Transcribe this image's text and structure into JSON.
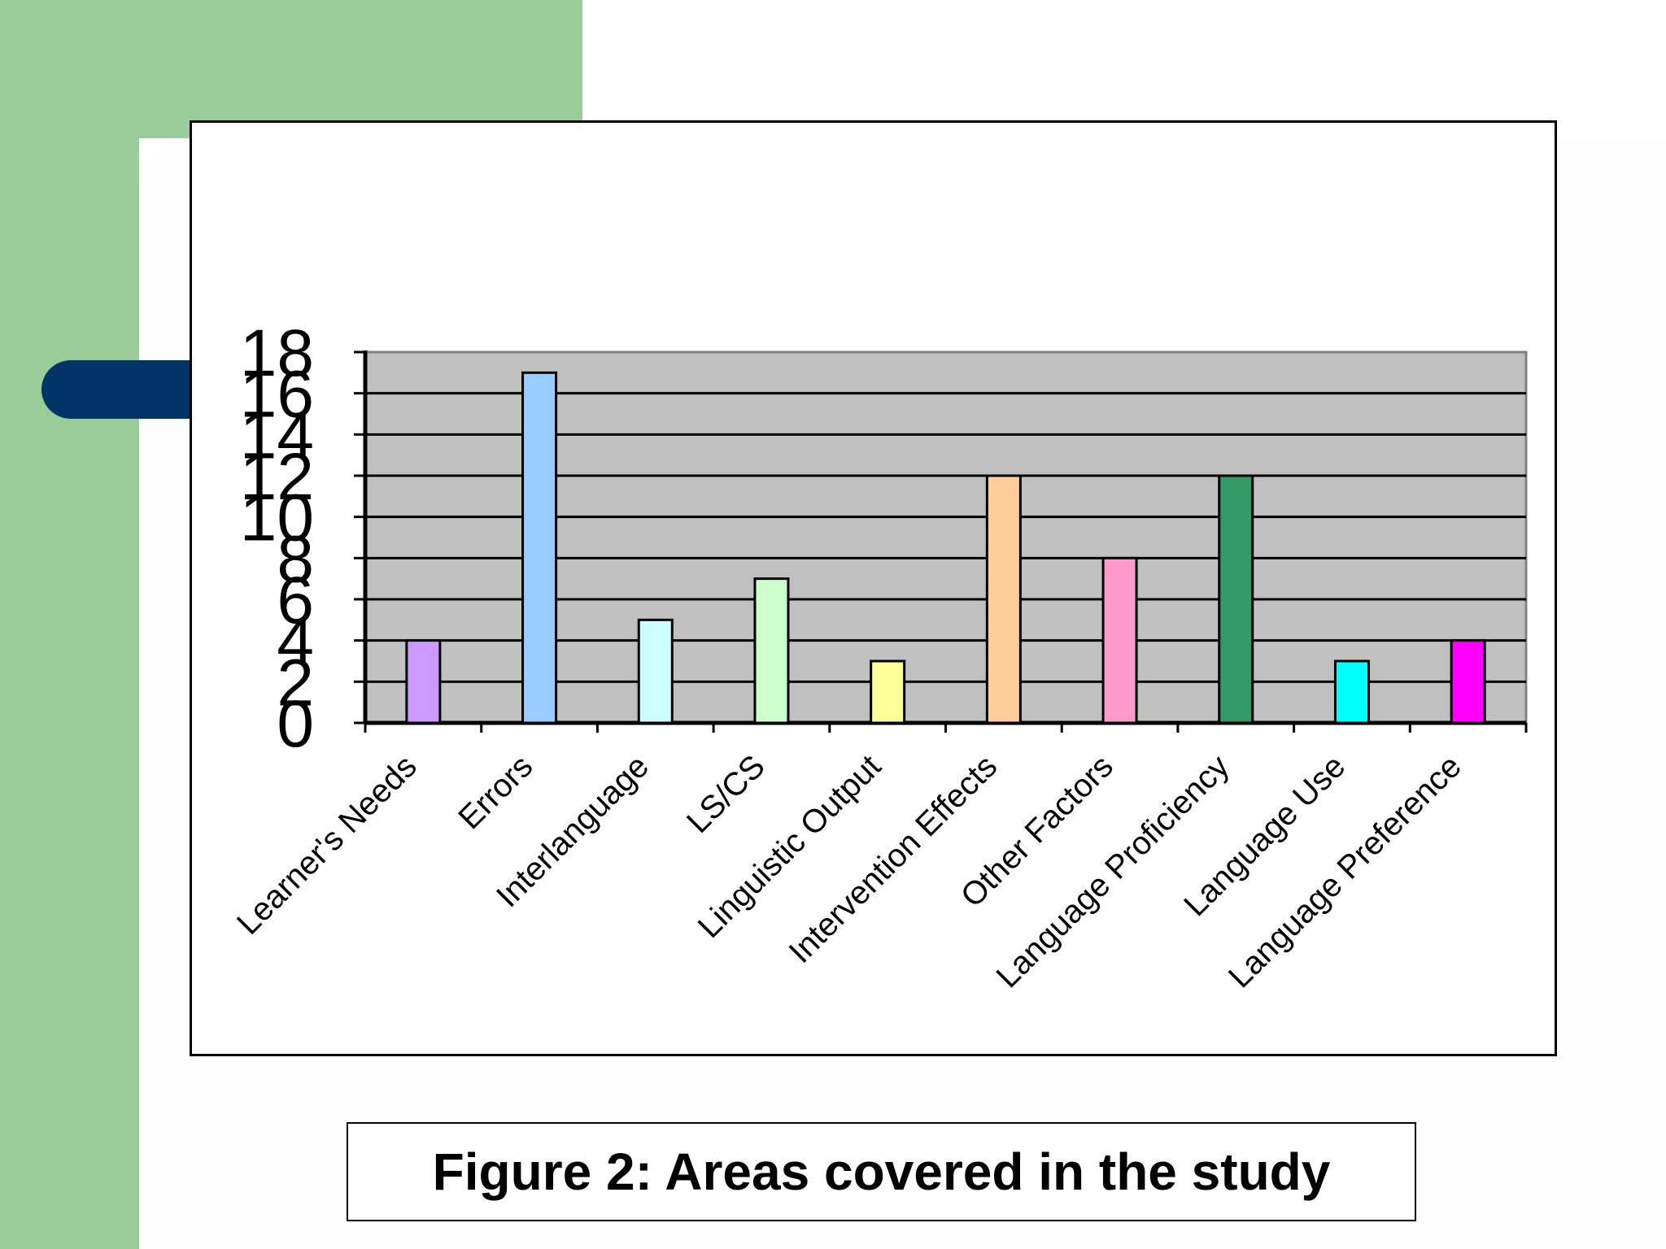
{
  "caption": "Figure 2: Areas covered in the study",
  "chart_data": {
    "type": "bar",
    "categories": [
      "Learner's Needs",
      "Errors",
      "Interlanguage",
      "LS/CS",
      "Linguistic Output",
      "Intervention Effects",
      "Other Factors",
      "Language Proficiency",
      "Language Use",
      "Language Preference"
    ],
    "values": [
      4,
      17,
      5,
      7,
      3,
      12,
      8,
      12,
      3,
      4
    ],
    "colors": [
      "#cc99ff",
      "#99ccff",
      "#ccffff",
      "#ccffcc",
      "#ffff99",
      "#ffcc99",
      "#ff99cc",
      "#339966",
      "#00ffff",
      "#ff00ff"
    ],
    "yticks": [
      "0",
      "2",
      "4",
      "6",
      "8",
      "10",
      "12",
      "14",
      "16",
      "18"
    ],
    "ylim": [
      0,
      18
    ],
    "grid": true,
    "plot_background": "#c0c0c0"
  }
}
